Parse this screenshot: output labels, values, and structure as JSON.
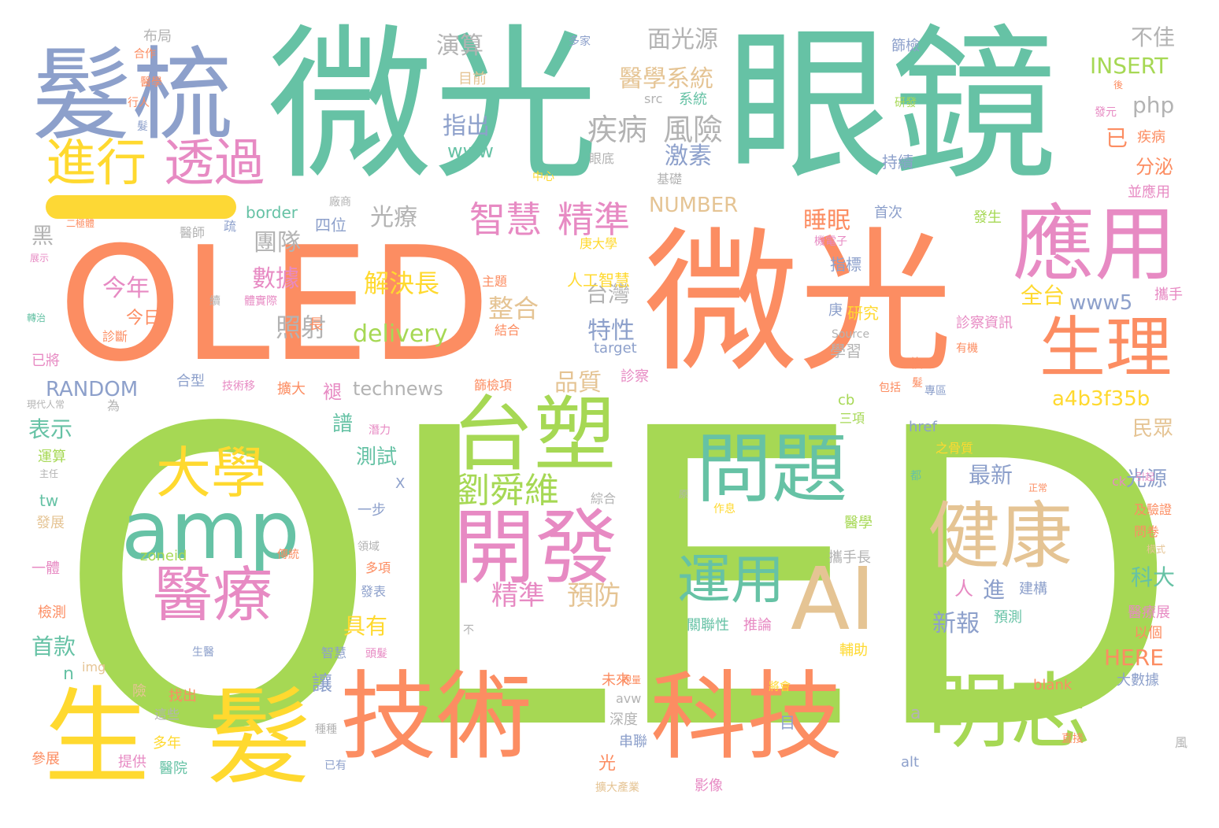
{
  "palette": {
    "green": "#a6d854",
    "orange": "#fc8d62",
    "teal": "#66c2a5",
    "blue": "#8da0cb",
    "pink": "#e78ac3",
    "yellow": "#ffd92f",
    "tan": "#e5c494",
    "gray": "#b3b3b3"
  },
  "words": [
    {
      "text": "OLED",
      "color": "green"
    },
    {
      "text": "OLED",
      "color": "orange"
    },
    {
      "text": "微光",
      "color": "teal"
    },
    {
      "text": "眼鏡",
      "color": "teal"
    },
    {
      "text": "微光",
      "color": "orange"
    },
    {
      "text": "髮梳",
      "color": "blue"
    },
    {
      "text": "技術",
      "color": "orange"
    },
    {
      "text": "科技",
      "color": "orange"
    },
    {
      "text": "應用",
      "color": "pink"
    },
    {
      "text": "生理",
      "color": "orange"
    },
    {
      "text": "台塑",
      "color": "green"
    },
    {
      "text": "問題",
      "color": "teal"
    },
    {
      "text": "開發",
      "color": "pink"
    },
    {
      "text": "健康",
      "color": "tan"
    },
    {
      "text": "明志",
      "color": "green"
    },
    {
      "text": "生",
      "color": "yellow"
    },
    {
      "text": "髮",
      "color": "yellow"
    },
    {
      "text": "amp",
      "color": "teal"
    },
    {
      "text": "AI",
      "color": "tan"
    },
    {
      "text": "大學",
      "color": "yellow"
    },
    {
      "text": "醫療",
      "color": "pink"
    },
    {
      "text": "進行",
      "color": "yellow"
    },
    {
      "text": "透過",
      "color": "pink"
    },
    {
      "text": "運用",
      "color": "teal"
    },
    {
      "text": "劉舜維",
      "color": "green"
    },
    {
      "text": "智慧",
      "color": "pink"
    },
    {
      "text": "精準",
      "color": "pink"
    },
    {
      "text": "疾病",
      "color": "gray"
    },
    {
      "text": "風險",
      "color": "gray"
    },
    {
      "text": "醫學系統",
      "color": "tan"
    },
    {
      "text": "面光源",
      "color": "gray"
    },
    {
      "text": "演算",
      "color": "gray"
    },
    {
      "text": "指出",
      "color": "blue"
    },
    {
      "text": "激素",
      "color": "blue"
    },
    {
      "text": "光療",
      "color": "gray"
    },
    {
      "text": "團隊",
      "color": "gray"
    },
    {
      "text": "數據",
      "color": "pink"
    },
    {
      "text": "今年",
      "color": "pink"
    },
    {
      "text": "今日",
      "color": "orange"
    },
    {
      "text": "解決長",
      "color": "yellow"
    },
    {
      "text": "整合",
      "color": "tan"
    },
    {
      "text": "照射",
      "color": "gray"
    },
    {
      "text": "台灣",
      "color": "gray"
    },
    {
      "text": "特性",
      "color": "blue"
    },
    {
      "text": "delivery",
      "color": "green"
    },
    {
      "text": "technews",
      "color": "gray"
    },
    {
      "text": "RANDOM",
      "color": "blue"
    },
    {
      "text": "品質",
      "color": "tan"
    },
    {
      "text": "睡眠",
      "color": "orange"
    },
    {
      "text": "NUMBER",
      "color": "tan"
    },
    {
      "text": "INSERT",
      "color": "green"
    },
    {
      "text": "php",
      "color": "gray"
    },
    {
      "text": "不佳",
      "color": "gray"
    },
    {
      "text": "分泌",
      "color": "orange"
    },
    {
      "text": "已",
      "color": "orange"
    },
    {
      "text": "www5",
      "color": "blue"
    },
    {
      "text": "全台",
      "color": "yellow"
    },
    {
      "text": "a4b3f35b",
      "color": "yellow"
    },
    {
      "text": "民眾",
      "color": "tan"
    },
    {
      "text": "光源",
      "color": "blue"
    },
    {
      "text": "最新",
      "color": "blue"
    },
    {
      "text": "科大",
      "color": "teal"
    },
    {
      "text": "新報",
      "color": "blue"
    },
    {
      "text": "HERE",
      "color": "orange"
    },
    {
      "text": "精準",
      "color": "pink"
    },
    {
      "text": "預防",
      "color": "tan"
    },
    {
      "text": "具有",
      "color": "yellow"
    },
    {
      "text": "首款",
      "color": "teal"
    },
    {
      "text": "表示",
      "color": "teal"
    },
    {
      "text": "測試",
      "color": "teal"
    },
    {
      "text": "譜",
      "color": "teal"
    },
    {
      "text": "讓",
      "color": "blue"
    },
    {
      "text": "www",
      "color": "teal"
    },
    {
      "text": "border",
      "color": "teal"
    },
    {
      "text": "四位",
      "color": "blue"
    },
    {
      "text": "人工智慧",
      "color": "yellow"
    },
    {
      "text": "研究",
      "color": "yellow"
    },
    {
      "text": "學習",
      "color": "gray"
    },
    {
      "text": "指標",
      "color": "blue"
    },
    {
      "text": "首次",
      "color": "blue"
    },
    {
      "text": "持續",
      "color": "blue"
    },
    {
      "text": "發生",
      "color": "green"
    },
    {
      "text": "診察資訊",
      "color": "pink"
    },
    {
      "text": "疾病",
      "color": "orange"
    },
    {
      "text": "並應用",
      "color": "pink"
    },
    {
      "text": "攜手",
      "color": "pink"
    },
    {
      "text": "建構",
      "color": "blue"
    },
    {
      "text": "醫療展",
      "color": "pink"
    },
    {
      "text": "以個",
      "color": "orange"
    },
    {
      "text": "大數據",
      "color": "blue"
    },
    {
      "text": "blank",
      "color": "orange"
    },
    {
      "text": "預測",
      "color": "teal"
    },
    {
      "text": "推論",
      "color": "pink"
    },
    {
      "text": "關聯性",
      "color": "teal"
    },
    {
      "text": "攜手長",
      "color": "gray"
    },
    {
      "text": "輔助",
      "color": "yellow"
    },
    {
      "text": "醫學",
      "color": "green"
    },
    {
      "text": "未來",
      "color": "orange"
    },
    {
      "text": "深度",
      "color": "gray"
    },
    {
      "text": "串聯",
      "color": "blue"
    },
    {
      "text": "影像",
      "color": "pink"
    },
    {
      "text": "提供",
      "color": "pink"
    },
    {
      "text": "醫院",
      "color": "teal"
    },
    {
      "text": "參展",
      "color": "orange"
    },
    {
      "text": "多年",
      "color": "yellow"
    },
    {
      "text": "這些",
      "color": "gray"
    },
    {
      "text": "找出",
      "color": "orange"
    },
    {
      "text": "img",
      "color": "tan"
    },
    {
      "text": "一步",
      "color": "blue"
    },
    {
      "text": "運算",
      "color": "green"
    },
    {
      "text": "發展",
      "color": "tan"
    },
    {
      "text": "一體",
      "color": "pink"
    },
    {
      "text": "檢測",
      "color": "orange"
    },
    {
      "text": "合型",
      "color": "blue"
    },
    {
      "text": "擴大",
      "color": "orange"
    },
    {
      "text": "診察",
      "color": "pink"
    },
    {
      "text": "已將",
      "color": "pink"
    },
    {
      "text": "黑",
      "color": "gray"
    },
    {
      "text": "醫師",
      "color": "gray"
    },
    {
      "text": "布局",
      "color": "gray"
    },
    {
      "text": "合作",
      "color": "orange"
    },
    {
      "text": "目前",
      "color": "tan"
    },
    {
      "text": "系統",
      "color": "teal"
    },
    {
      "text": "src",
      "color": "gray"
    },
    {
      "text": "多家",
      "color": "blue"
    },
    {
      "text": "篩檢",
      "color": "blue"
    },
    {
      "text": "眼底",
      "color": "gray"
    },
    {
      "text": "基礎",
      "color": "gray"
    },
    {
      "text": "中心",
      "color": "yellow"
    },
    {
      "text": "zoneid",
      "color": "green"
    },
    {
      "text": "target",
      "color": "blue"
    },
    {
      "text": "cb",
      "color": "green"
    },
    {
      "text": "tw",
      "color": "teal"
    },
    {
      "text": "href",
      "color": "blue"
    },
    {
      "text": "ck",
      "color": "pink"
    },
    {
      "text": "alt",
      "color": "blue"
    },
    {
      "text": "avw",
      "color": "gray"
    },
    {
      "text": "Source",
      "color": "gray"
    },
    {
      "text": "人",
      "color": "pink"
    },
    {
      "text": "進",
      "color": "blue"
    },
    {
      "text": "光",
      "color": "orange"
    },
    {
      "text": "a",
      "color": "gray"
    },
    {
      "text": "n",
      "color": "teal"
    },
    {
      "text": "X",
      "color": "blue"
    },
    {
      "text": "目",
      "color": "blue"
    },
    {
      "text": "長",
      "color": "orange"
    },
    {
      "text": "之骨質",
      "color": "yellow"
    },
    {
      "text": "及驗證",
      "color": "orange"
    },
    {
      "text": "問卷",
      "color": "orange"
    },
    {
      "text": "綜合",
      "color": "gray"
    },
    {
      "text": "三項",
      "color": "green"
    },
    {
      "text": "主題",
      "color": "orange"
    },
    {
      "text": "結合",
      "color": "orange"
    },
    {
      "text": "篩檢項",
      "color": "orange"
    },
    {
      "text": "庚大學",
      "color": "yellow"
    },
    {
      "text": "醫學",
      "color": "orange"
    },
    {
      "text": "行人",
      "color": "orange"
    },
    {
      "text": "二極體",
      "color": "orange"
    },
    {
      "text": "展示",
      "color": "pink"
    },
    {
      "text": "轉治",
      "color": "teal"
    },
    {
      "text": "診斷",
      "color": "orange"
    },
    {
      "text": "現代人常",
      "color": "gray"
    },
    {
      "text": "主任",
      "color": "gray"
    },
    {
      "text": "傳統",
      "color": "orange"
    },
    {
      "text": "領域",
      "color": "gray"
    },
    {
      "text": "多項",
      "color": "orange"
    },
    {
      "text": "發表",
      "color": "blue"
    },
    {
      "text": "生醫",
      "color": "blue"
    },
    {
      "text": "智慧",
      "color": "blue"
    },
    {
      "text": "頭髮",
      "color": "pink"
    },
    {
      "text": "種種",
      "color": "gray"
    },
    {
      "text": "已有",
      "color": "blue"
    },
    {
      "text": "擴大產業",
      "color": "tan"
    },
    {
      "text": "將會",
      "color": "yellow"
    },
    {
      "text": "直接",
      "color": "orange"
    },
    {
      "text": "風",
      "color": "gray"
    },
    {
      "text": "研發",
      "color": "green"
    },
    {
      "text": "發元",
      "color": "pink"
    },
    {
      "text": "後",
      "color": "orange"
    },
    {
      "text": "機電子",
      "color": "pink"
    },
    {
      "text": "有機",
      "color": "orange"
    },
    {
      "text": "包括",
      "color": "orange"
    },
    {
      "text": "專區",
      "color": "blue"
    },
    {
      "text": "正常",
      "color": "orange"
    },
    {
      "text": "引起",
      "color": "pink"
    },
    {
      "text": "模式",
      "color": "tan"
    },
    {
      "text": "作息",
      "color": "yellow"
    },
    {
      "text": "原",
      "color": "gray"
    },
    {
      "text": "都",
      "color": "teal"
    },
    {
      "text": "不",
      "color": "gray"
    },
    {
      "text": "廠商",
      "color": "gray"
    },
    {
      "text": "體實際",
      "color": "pink"
    },
    {
      "text": "技術移",
      "color": "pink"
    },
    {
      "text": "潛力",
      "color": "pink"
    },
    {
      "text": "續",
      "color": "gray"
    },
    {
      "text": "髮",
      "color": "blue"
    },
    {
      "text": "複",
      "color": "orange"
    },
    {
      "text": "疏",
      "color": "blue"
    },
    {
      "text": "庚",
      "color": "blue"
    },
    {
      "text": "褪",
      "color": "pink"
    },
    {
      "text": "為",
      "color": "gray"
    },
    {
      "text": "險",
      "color": "tan"
    },
    {
      "text": "規量",
      "color": "orange"
    },
    {
      "text": "髮",
      "color": "orange"
    }
  ]
}
